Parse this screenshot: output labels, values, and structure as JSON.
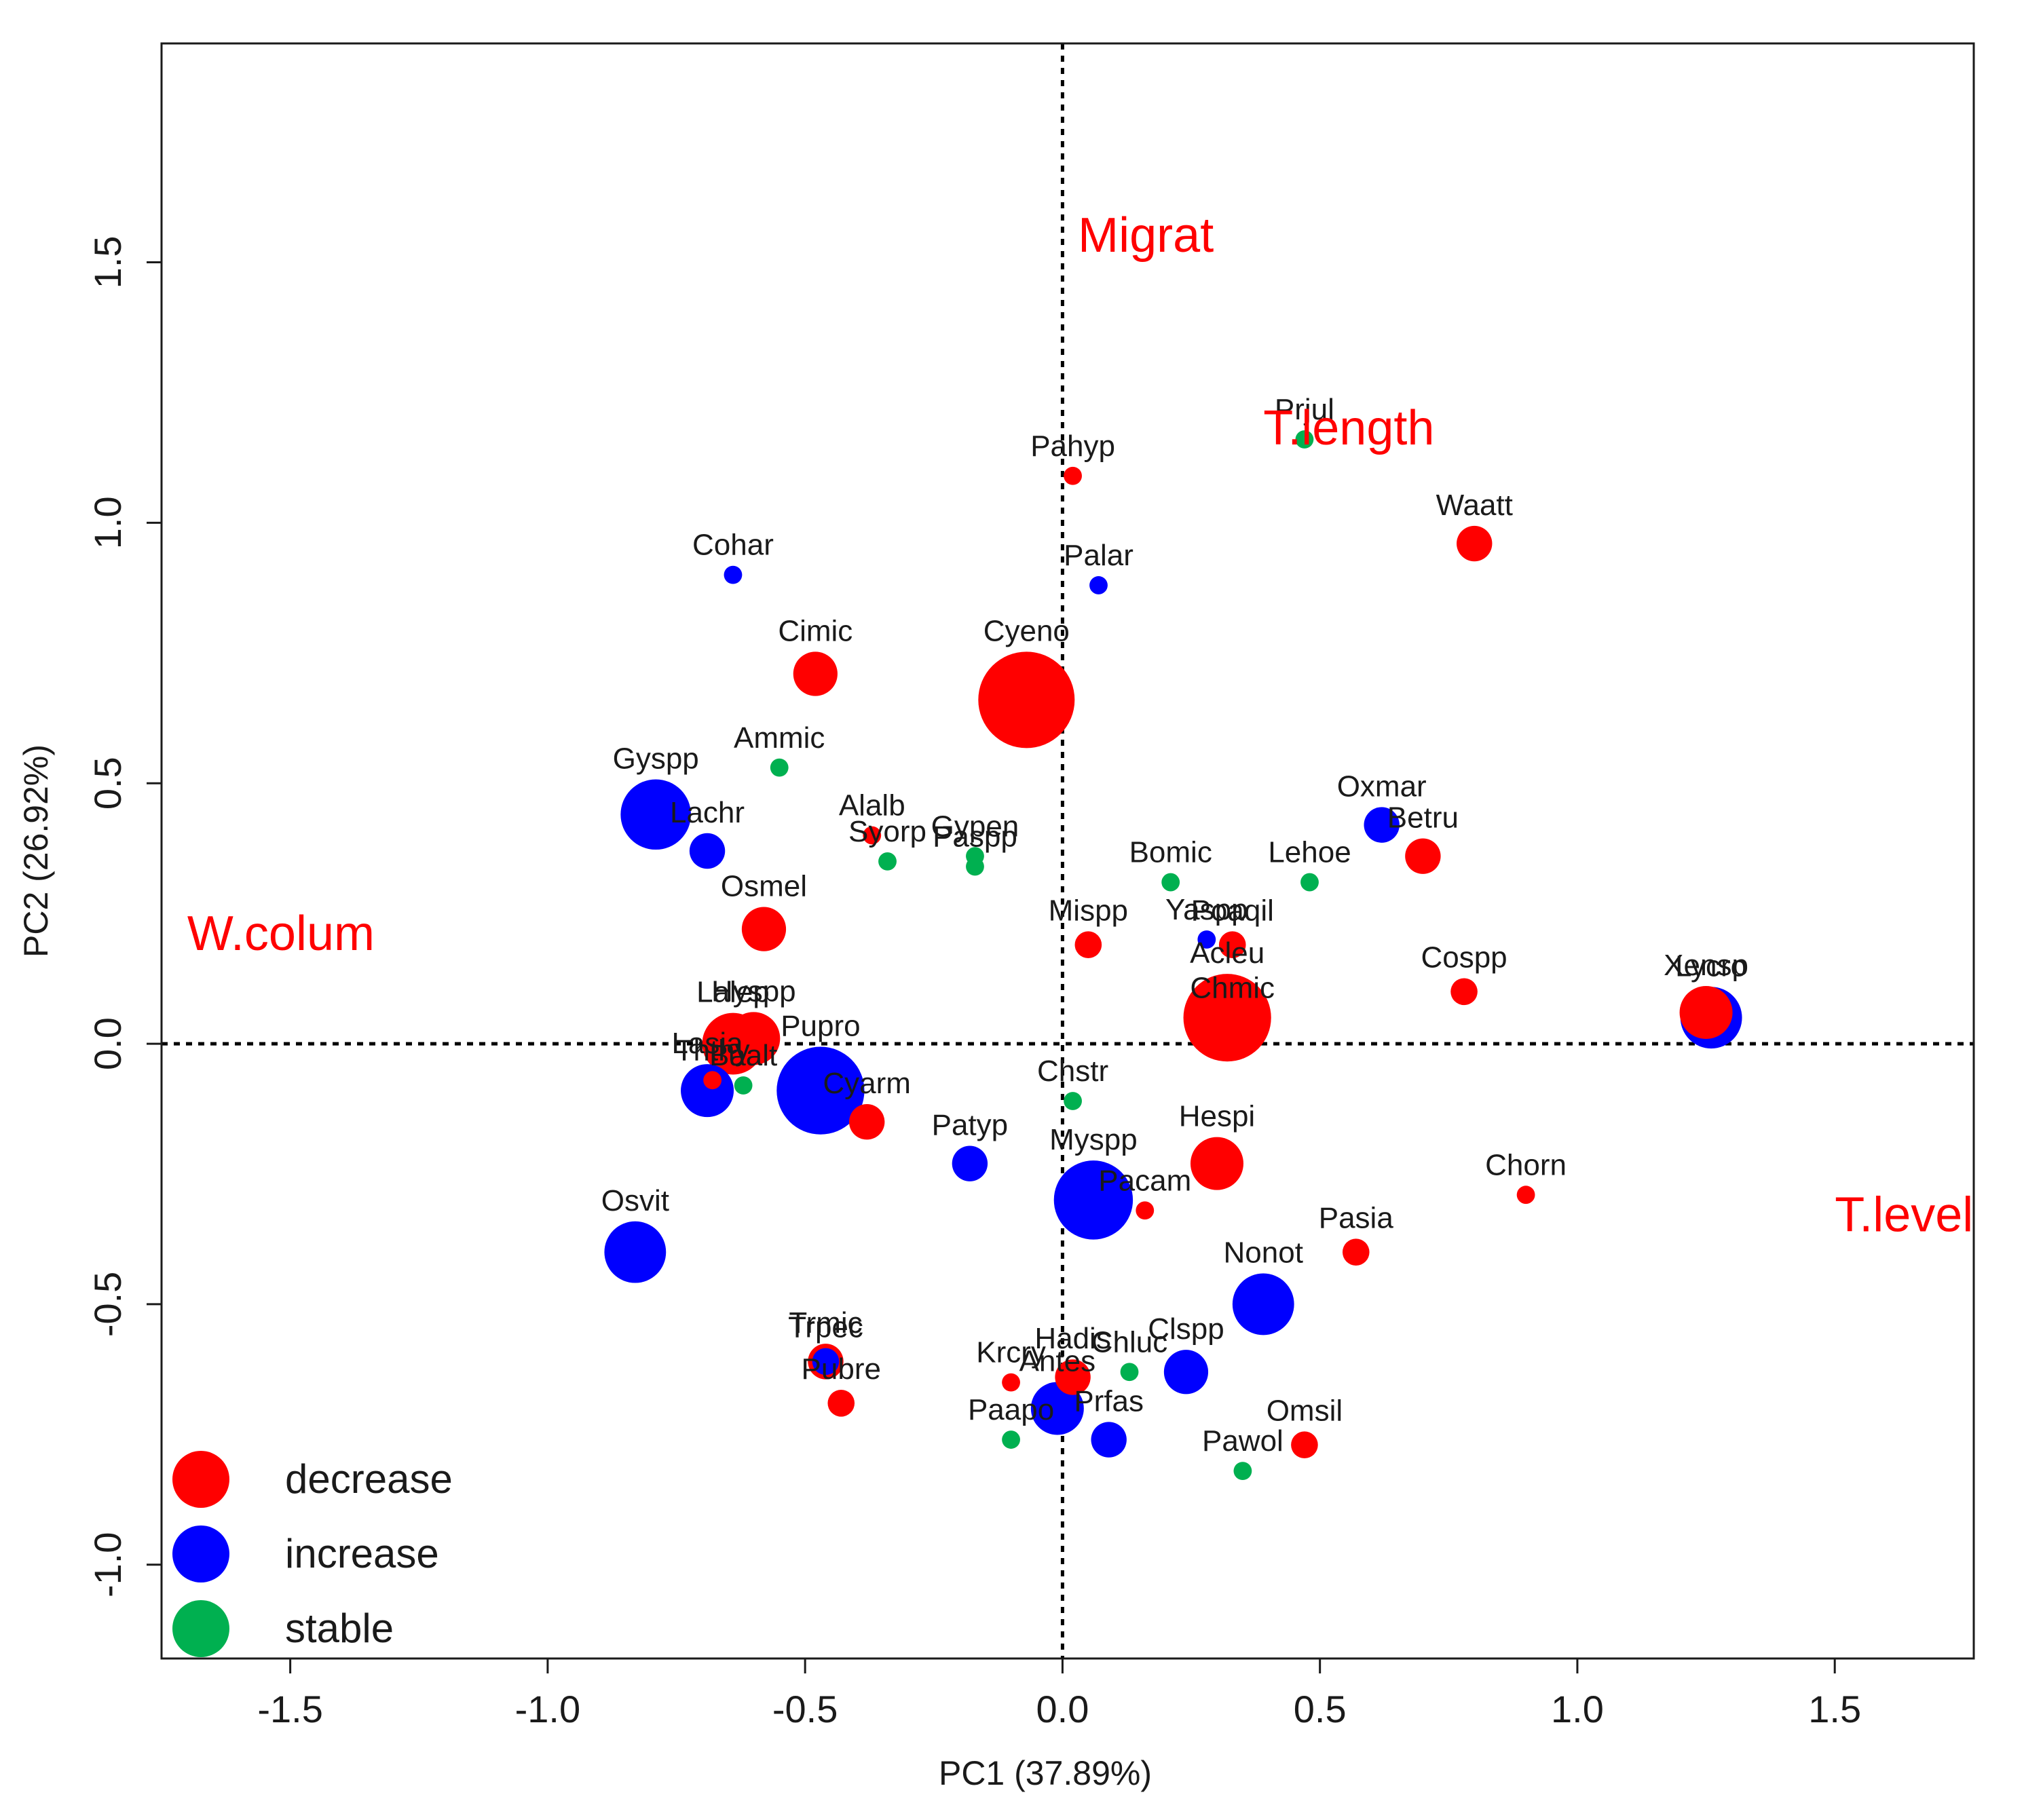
{
  "chart_data": {
    "type": "scatter",
    "title": "",
    "xlabel": "PC1 (37.89%)",
    "ylabel": "PC2 (26.92%)",
    "xlim": [
      -1.75,
      1.77
    ],
    "ylim": [
      -1.18,
      1.92
    ],
    "xticks": [
      -1.5,
      -1.0,
      -0.5,
      0.0,
      0.5,
      1.0,
      1.5
    ],
    "xtick_labels": [
      "-1.5",
      "-1.0",
      "-0.5",
      "0.0",
      "0.5",
      "1.0",
      "1.5"
    ],
    "yticks": [
      -1.0,
      -0.5,
      0.0,
      0.5,
      1.0,
      1.5
    ],
    "ytick_labels": [
      "-1.0",
      "-0.5",
      "0.0",
      "0.5",
      "1.0",
      "1.5"
    ],
    "reference_lines": {
      "x": 0,
      "y": 0,
      "style": "dotted"
    },
    "colors": {
      "decrease": "#ff0000",
      "increase": "#0000ff",
      "stable": "#00b050",
      "variable": "#ff0000"
    },
    "legend": {
      "position": "bottom-left",
      "entries": [
        {
          "label": "decrease",
          "group": "decrease"
        },
        {
          "label": "increase",
          "group": "increase"
        },
        {
          "label": "stable",
          "group": "stable"
        }
      ]
    },
    "variables": [
      {
        "name": "Migrat",
        "x": 0.03,
        "y": 1.52
      },
      {
        "name": "T.length",
        "x": 0.39,
        "y": 1.15
      },
      {
        "name": "W.colum",
        "x": -1.7,
        "y": 0.18
      },
      {
        "name": "T.level",
        "x": 1.5,
        "y": -0.36
      }
    ],
    "points": [
      {
        "label": "Pahyp",
        "x": 0.02,
        "y": 1.09,
        "group": "decrease",
        "size": 1
      },
      {
        "label": "Prjul",
        "x": 0.47,
        "y": 1.16,
        "group": "stable",
        "size": 1
      },
      {
        "label": "Waatt",
        "x": 0.8,
        "y": 0.96,
        "group": "decrease",
        "size": 3
      },
      {
        "label": "Cohar",
        "x": -0.64,
        "y": 0.9,
        "group": "increase",
        "size": 1
      },
      {
        "label": "Palar",
        "x": 0.07,
        "y": 0.88,
        "group": "increase",
        "size": 1
      },
      {
        "label": "Cimic",
        "x": -0.48,
        "y": 0.71,
        "group": "decrease",
        "size": 4
      },
      {
        "label": "Cyeno",
        "x": -0.07,
        "y": 0.66,
        "group": "decrease",
        "size": 10
      },
      {
        "label": "Ammic",
        "x": -0.55,
        "y": 0.53,
        "group": "stable",
        "size": 1
      },
      {
        "label": "Gyspp",
        "x": -0.79,
        "y": 0.44,
        "group": "increase",
        "size": 7
      },
      {
        "label": "Alalb",
        "x": -0.37,
        "y": 0.4,
        "group": "decrease",
        "size": 1
      },
      {
        "label": "Lachr",
        "x": -0.69,
        "y": 0.37,
        "group": "increase",
        "size": 3
      },
      {
        "label": "Syorp",
        "x": -0.34,
        "y": 0.35,
        "group": "stable",
        "size": 1
      },
      {
        "label": "Gypen",
        "x": -0.17,
        "y": 0.36,
        "group": "stable",
        "size": 1
      },
      {
        "label": "Paspp",
        "x": -0.17,
        "y": 0.34,
        "group": "stable",
        "size": 1
      },
      {
        "label": "Oxmar",
        "x": 0.62,
        "y": 0.42,
        "group": "increase",
        "size": 3
      },
      {
        "label": "Betru",
        "x": 0.7,
        "y": 0.36,
        "group": "decrease",
        "size": 3
      },
      {
        "label": "Bomic",
        "x": 0.21,
        "y": 0.31,
        "group": "stable",
        "size": 1
      },
      {
        "label": "Lehoe",
        "x": 0.48,
        "y": 0.31,
        "group": "stable",
        "size": 1
      },
      {
        "label": "Osmel",
        "x": -0.58,
        "y": 0.22,
        "group": "decrease",
        "size": 4
      },
      {
        "label": "Mispp",
        "x": 0.05,
        "y": 0.19,
        "group": "decrease",
        "size": 2
      },
      {
        "label": "Yaspp",
        "x": 0.28,
        "y": 0.2,
        "group": "increase",
        "size": 1
      },
      {
        "label": "Poaqil",
        "x": 0.33,
        "y": 0.19,
        "group": "decrease",
        "size": 2
      },
      {
        "label": "Cospp",
        "x": 0.78,
        "y": 0.1,
        "group": "decrease",
        "size": 2
      },
      {
        "label": "Acleu",
        "x": 0.32,
        "y": 0.05,
        "group": "decrease",
        "size": 9
      },
      {
        "label": "Chmic",
        "x": 0.33,
        "y": 0.05,
        "group": "decrease",
        "size": 1
      },
      {
        "label": "Lycro",
        "x": 1.26,
        "y": 0.05,
        "group": "increase",
        "size": 6
      },
      {
        "label": "Xensp",
        "x": 1.25,
        "y": 0.06,
        "group": "decrease",
        "size": 5
      },
      {
        "label": "Lalep",
        "x": -0.64,
        "y": 0.0,
        "group": "decrease",
        "size": 6
      },
      {
        "label": "Hyspp",
        "x": -0.6,
        "y": 0.01,
        "group": "decrease",
        "size": 5
      },
      {
        "label": "Ththy",
        "x": -0.68,
        "y": -0.07,
        "group": "decrease",
        "size": 1
      },
      {
        "label": "Lasia",
        "x": -0.69,
        "y": -0.09,
        "group": "increase",
        "size": 5
      },
      {
        "label": "Baalt",
        "x": -0.62,
        "y": -0.08,
        "group": "stable",
        "size": 1
      },
      {
        "label": "Pupro",
        "x": -0.47,
        "y": -0.09,
        "group": "increase",
        "size": 9
      },
      {
        "label": "Chstr",
        "x": 0.02,
        "y": -0.11,
        "group": "stable",
        "size": 1
      },
      {
        "label": "Cyarm",
        "x": -0.38,
        "y": -0.15,
        "group": "decrease",
        "size": 3
      },
      {
        "label": "Hespi",
        "x": 0.3,
        "y": -0.23,
        "group": "decrease",
        "size": 5
      },
      {
        "label": "Patyp",
        "x": -0.18,
        "y": -0.23,
        "group": "increase",
        "size": 3
      },
      {
        "label": "Myspp",
        "x": 0.06,
        "y": -0.3,
        "group": "increase",
        "size": 8
      },
      {
        "label": "Pacam",
        "x": 0.16,
        "y": -0.32,
        "group": "decrease",
        "size": 1
      },
      {
        "label": "Chorn",
        "x": 0.9,
        "y": -0.29,
        "group": "decrease",
        "size": 1
      },
      {
        "label": "Osvit",
        "x": -0.83,
        "y": -0.4,
        "group": "increase",
        "size": 6
      },
      {
        "label": "Pasia",
        "x": 0.57,
        "y": -0.4,
        "group": "decrease",
        "size": 2
      },
      {
        "label": "Nonot",
        "x": 0.39,
        "y": -0.5,
        "group": "increase",
        "size": 6
      },
      {
        "label": "Trmic",
        "x": -0.46,
        "y": -0.61,
        "group": "decrease",
        "size": 3
      },
      {
        "label": "Trpec",
        "x": -0.46,
        "y": -0.61,
        "group": "increase",
        "size": 2
      },
      {
        "label": "Hadis",
        "x": 0.02,
        "y": -0.64,
        "group": "decrease",
        "size": 3
      },
      {
        "label": "Chluc",
        "x": 0.13,
        "y": -0.63,
        "group": "stable",
        "size": 1
      },
      {
        "label": "Clspp",
        "x": 0.24,
        "y": -0.63,
        "group": "increase",
        "size": 4
      },
      {
        "label": "Krcry",
        "x": -0.1,
        "y": -0.65,
        "group": "decrease",
        "size": 1
      },
      {
        "label": "Antes",
        "x": -0.01,
        "y": -0.7,
        "group": "increase",
        "size": 5
      },
      {
        "label": "Pubre",
        "x": -0.43,
        "y": -0.69,
        "group": "decrease",
        "size": 2
      },
      {
        "label": "Paapo",
        "x": -0.1,
        "y": -0.76,
        "group": "stable",
        "size": 1
      },
      {
        "label": "Prfas",
        "x": 0.09,
        "y": -0.76,
        "group": "increase",
        "size": 3
      },
      {
        "label": "Pawol",
        "x": 0.35,
        "y": -0.82,
        "group": "stable",
        "size": 1
      },
      {
        "label": "Omsil",
        "x": 0.47,
        "y": -0.77,
        "group": "decrease",
        "size": 2
      }
    ]
  }
}
